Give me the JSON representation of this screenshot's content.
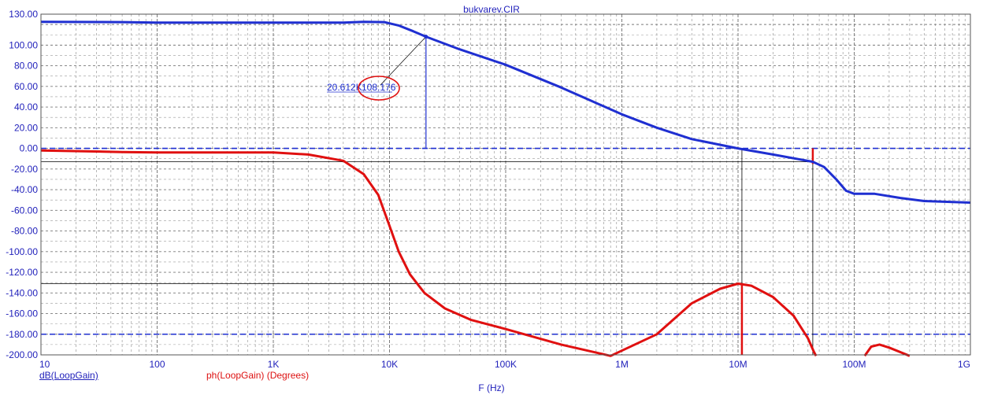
{
  "title": "bukvarev.CIR",
  "colors": {
    "magnitude": "#1f2fd1",
    "phase": "#e01010",
    "axis_text": "#2222bb",
    "grid": "#9a9a9a",
    "cursor": "#000000"
  },
  "chart_data": {
    "type": "line",
    "x_scale": "log",
    "xlim": [
      10,
      1000000000
    ],
    "ylim": [
      -200,
      130
    ],
    "y_ticks": [
      "130.00",
      "100.00",
      "80.00",
      "60.00",
      "40.00",
      "20.00",
      "0.00",
      "-20.00",
      "-40.00",
      "-60.00",
      "-80.00",
      "-100.00",
      "-120.00",
      "-140.00",
      "-160.00",
      "-180.00",
      "-200.00"
    ],
    "y_tick_values": [
      130,
      100,
      80,
      60,
      40,
      20,
      0,
      -20,
      -40,
      -60,
      -80,
      -100,
      -120,
      -140,
      -160,
      -180,
      -200
    ],
    "x_ticks": [
      "10",
      "100",
      "1K",
      "10K",
      "100K",
      "1M",
      "10M",
      "100M",
      "1G"
    ],
    "x_tick_values": [
      10,
      100,
      1000,
      10000,
      100000,
      1000000,
      10000000,
      100000000,
      1000000000
    ],
    "xlabel": "F (Hz)",
    "grid": true,
    "series": [
      {
        "name": "dB(LoopGain)",
        "color": "#1f2fd1",
        "points": [
          [
            10,
            122.5
          ],
          [
            50,
            122.3
          ],
          [
            100,
            121.8
          ],
          [
            1000,
            121.8
          ],
          [
            4000,
            121.8
          ],
          [
            6000,
            122.6
          ],
          [
            9000,
            122.3
          ],
          [
            12000,
            119
          ],
          [
            16000,
            113.5
          ],
          [
            20600,
            108.2
          ],
          [
            40000,
            96
          ],
          [
            100000,
            81
          ],
          [
            300000,
            59
          ],
          [
            1000000,
            33
          ],
          [
            2000000,
            20
          ],
          [
            4000000,
            9
          ],
          [
            10000000,
            0
          ],
          [
            20000000,
            -6
          ],
          [
            44000000,
            -13
          ],
          [
            55000000,
            -18
          ],
          [
            70000000,
            -30
          ],
          [
            85000000,
            -41
          ],
          [
            100000000,
            -44
          ],
          [
            150000000,
            -44
          ],
          [
            250000000,
            -48
          ],
          [
            400000000,
            -51
          ],
          [
            1000000000,
            -52.5
          ]
        ]
      },
      {
        "name": "ph(LoopGain) (Degrees)",
        "color": "#e01010",
        "points": [
          [
            10,
            -2
          ],
          [
            50,
            -3.5
          ],
          [
            100,
            -4
          ],
          [
            1000,
            -4
          ],
          [
            2000,
            -6
          ],
          [
            4000,
            -12
          ],
          [
            6000,
            -25
          ],
          [
            8000,
            -45
          ],
          [
            10000,
            -75
          ],
          [
            12000,
            -100
          ],
          [
            15000,
            -122
          ],
          [
            20000,
            -140
          ],
          [
            30000,
            -155
          ],
          [
            50000,
            -166
          ],
          [
            100000,
            -175
          ],
          [
            300000,
            -190
          ],
          [
            800000,
            -201
          ],
          [
            2000000,
            -180
          ],
          [
            4000000,
            -150
          ],
          [
            7000000,
            -136
          ],
          [
            10000000,
            -131
          ],
          [
            13000000,
            -133
          ],
          [
            20000000,
            -144
          ],
          [
            30000000,
            -162
          ],
          [
            40000000,
            -184
          ],
          [
            45000000,
            -197
          ],
          [
            47000000,
            -201
          ]
        ]
      },
      {
        "name": "",
        "color": "#e01010",
        "points": [
          [
            123000000,
            -201
          ],
          [
            140000000,
            -192
          ],
          [
            165000000,
            -190
          ],
          [
            200000000,
            -193
          ],
          [
            300000000,
            -201
          ]
        ]
      }
    ],
    "reference_lines": [
      0,
      -180
    ],
    "annotations": [
      {
        "x": 20612,
        "y": 108.176,
        "label_x": "20.612K",
        "label_y": "108.176"
      }
    ],
    "cursors": [
      {
        "x": 10800000,
        "level": -131
      },
      {
        "x": 44000000,
        "level": -13
      }
    ]
  }
}
